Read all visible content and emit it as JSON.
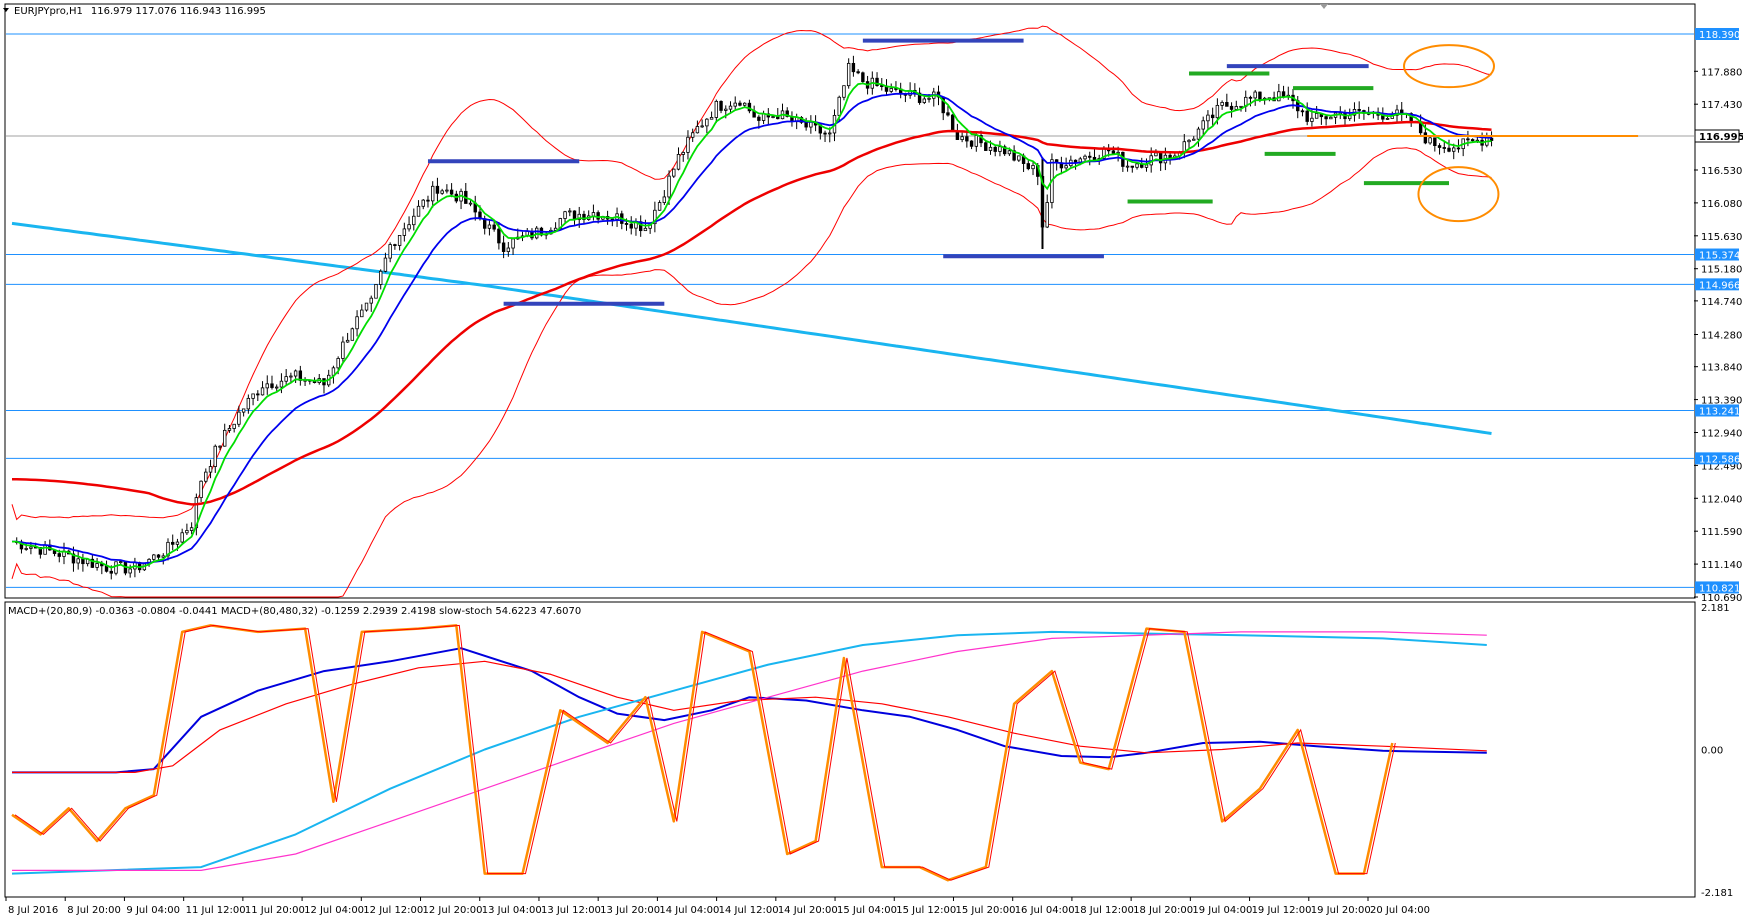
{
  "main_header": {
    "symbol": "EURJPYpro,H1",
    "ohlc": "116.979 117.076 116.943 116.995"
  },
  "sub_header": "MACD+(20,80,9) -0.0363 -0.0804 -0.0441  MACD+(80,480,32) -0.1259 2.2939 2.4198  slow-stoch 54.6223 47.6070",
  "colors": {
    "bull": "#ffffff",
    "bear": "#000000",
    "ema_green": "#00dd00",
    "ema_blue": "#0000ee",
    "ema_red": "#ee0000",
    "bands": "#ff0000",
    "ma_long": "#19b5f0",
    "level_line": "#1e90ff",
    "price_line": "#ff8c00",
    "support_resistance": "#3344bb",
    "swing_marks": "#22aa22",
    "circle": "#ff8c00",
    "macd_main": "#0000dd",
    "macd_signal": "#ff0000",
    "macd_long": "#19b5f0",
    "macd_long_signal": "#ff33cc",
    "stoch": "#ff8c00"
  },
  "chart_data": [
    {
      "type": "candlestick",
      "ylim": [
        110.69,
        118.39
      ],
      "y_ticks": [
        "117.880",
        "117.430",
        "116.530",
        "116.080",
        "115.630",
        "115.180",
        "114.740",
        "114.280",
        "113.840",
        "113.390",
        "112.940",
        "112.490",
        "112.040",
        "111.590",
        "111.140",
        "110.690"
      ],
      "levels": [
        {
          "value": 118.39,
          "label": "118.390"
        },
        {
          "value": 115.374,
          "label": "115.374"
        },
        {
          "value": 114.966,
          "label": "114.966"
        },
        {
          "value": 113.241,
          "label": "113.241"
        },
        {
          "value": 112.586,
          "label": "112.586"
        },
        {
          "value": 110.821,
          "label": "110.821"
        }
      ],
      "current_price": {
        "value": 116.995,
        "label": "116.995"
      },
      "x_labels": [
        "8 Jul 2016",
        "8 Jul 20:00",
        "9 Jul 04:00",
        "11 Jul 12:00",
        "11 Jul 20:00",
        "12 Jul 04:00",
        "12 Jul 12:00",
        "12 Jul 20:00",
        "13 Jul 04:00",
        "13 Jul 12:00",
        "13 Jul 20:00",
        "14 Jul 04:00",
        "14 Jul 12:00",
        "14 Jul 20:00",
        "15 Jul 04:00",
        "15 Jul 12:00",
        "15 Jul 20:00",
        "16 Jul 04:00",
        "18 Jul 12:00",
        "18 Jul 20:00",
        "19 Jul 04:00",
        "19 Jul 12:00",
        "19 Jul 20:00",
        "20 Jul 04:00"
      ],
      "bars": 228,
      "close_path": [
        [
          0,
          111.45
        ],
        [
          12,
          111.25
        ],
        [
          20,
          111.1
        ],
        [
          26,
          111.08
        ],
        [
          33,
          111.35
        ],
        [
          38,
          111.7
        ],
        [
          40,
          112.3
        ],
        [
          44,
          112.8
        ],
        [
          48,
          113.2
        ],
        [
          53,
          113.6
        ],
        [
          60,
          113.7
        ],
        [
          66,
          113.6
        ],
        [
          72,
          114.4
        ],
        [
          76,
          114.7
        ],
        [
          80,
          115.5
        ],
        [
          86,
          116.0
        ],
        [
          90,
          116.3
        ],
        [
          95,
          116.15
        ],
        [
          100,
          115.8
        ],
        [
          104,
          115.5
        ],
        [
          108,
          115.6
        ],
        [
          112,
          115.7
        ],
        [
          117,
          115.9
        ],
        [
          123,
          115.95
        ],
        [
          130,
          115.85
        ],
        [
          134,
          115.75
        ],
        [
          137,
          116.1
        ],
        [
          141,
          116.7
        ],
        [
          145,
          117.1
        ],
        [
          149,
          117.4
        ],
        [
          154,
          117.5
        ],
        [
          158,
          117.2
        ],
        [
          162,
          117.3
        ],
        [
          165,
          117.2
        ],
        [
          169,
          117.1
        ],
        [
          173,
          117.0
        ],
        [
          177,
          117.9
        ],
        [
          180,
          117.75
        ],
        [
          186,
          117.6
        ],
        [
          190,
          117.55
        ],
        [
          196,
          117.5
        ],
        [
          200,
          117.0
        ],
        [
          205,
          116.9
        ],
        [
          210,
          116.8
        ],
        [
          214,
          116.6
        ],
        [
          217,
          116.5
        ],
        [
          218,
          115.6
        ],
        [
          220,
          116.6
        ],
        [
          226,
          116.7
        ],
        [
          232,
          116.8
        ],
        [
          236,
          116.6
        ],
        [
          242,
          116.7
        ],
        [
          246,
          116.75
        ],
        [
          250,
          117.0
        ],
        [
          256,
          117.4
        ],
        [
          262,
          117.5
        ],
        [
          266,
          117.55
        ],
        [
          270,
          117.5
        ],
        [
          275,
          117.2
        ],
        [
          280,
          117.3
        ],
        [
          286,
          117.3
        ],
        [
          292,
          117.3
        ],
        [
          296,
          117.2
        ],
        [
          300,
          116.9
        ],
        [
          306,
          116.85
        ],
        [
          311,
          116.95
        ],
        [
          313,
          116.995
        ]
      ],
      "indicators": {
        "ema_fast": "green line",
        "ema_mid": "blue line",
        "ema_slow": "red line",
        "bands": "thin red envelope",
        "ma_long": "light-blue line"
      }
    },
    {
      "type": "line",
      "ylim": [
        -2.181,
        2.181
      ],
      "y_ticks": [
        "2.181",
        "0.00",
        "-2.181"
      ],
      "series": [
        {
          "values": [
            [
              0,
              -0.35
            ],
            [
              22,
              -0.35
            ],
            [
              30,
              -0.3
            ],
            [
              40,
              0.5
            ],
            [
              52,
              0.9
            ],
            [
              66,
              1.2
            ],
            [
              80,
              1.35
            ],
            [
              95,
              1.55
            ],
            [
              110,
              1.2
            ],
            [
              120,
              0.8
            ],
            [
              128,
              0.55
            ],
            [
              138,
              0.45
            ],
            [
              148,
              0.6
            ],
            [
              156,
              0.8
            ],
            [
              168,
              0.75
            ],
            [
              180,
              0.6
            ],
            [
              190,
              0.5
            ],
            [
              200,
              0.3
            ],
            [
              210,
              0.05
            ],
            [
              222,
              -0.1
            ],
            [
              232,
              -0.12
            ],
            [
              240,
              -0.05
            ],
            [
              252,
              0.1
            ],
            [
              264,
              0.12
            ],
            [
              276,
              0.05
            ],
            [
              290,
              -0.02
            ],
            [
              312,
              -0.05
            ]
          ]
        },
        {
          "values": [
            [
              0,
              -0.35
            ],
            [
              26,
              -0.35
            ],
            [
              34,
              -0.25
            ],
            [
              44,
              0.3
            ],
            [
              58,
              0.7
            ],
            [
              72,
              1.0
            ],
            [
              86,
              1.25
            ],
            [
              100,
              1.35
            ],
            [
              114,
              1.15
            ],
            [
              128,
              0.8
            ],
            [
              140,
              0.6
            ],
            [
              154,
              0.75
            ],
            [
              170,
              0.8
            ],
            [
              184,
              0.7
            ],
            [
              198,
              0.5
            ],
            [
              212,
              0.25
            ],
            [
              226,
              0.05
            ],
            [
              240,
              -0.05
            ],
            [
              256,
              0.0
            ],
            [
              272,
              0.1
            ],
            [
              290,
              0.05
            ],
            [
              312,
              -0.02
            ]
          ]
        },
        {
          "values": [
            [
              0,
              -1.9
            ],
            [
              40,
              -1.8
            ],
            [
              60,
              -1.3
            ],
            [
              80,
              -0.6
            ],
            [
              100,
              0.0
            ],
            [
              120,
              0.5
            ],
            [
              140,
              0.9
            ],
            [
              160,
              1.3
            ],
            [
              180,
              1.6
            ],
            [
              200,
              1.75
            ],
            [
              220,
              1.8
            ],
            [
              260,
              1.75
            ],
            [
              290,
              1.7
            ],
            [
              312,
              1.6
            ]
          ]
        },
        {
          "values": [
            [
              0,
              -1.85
            ],
            [
              40,
              -1.85
            ],
            [
              60,
              -1.6
            ],
            [
              80,
              -1.1
            ],
            [
              100,
              -0.6
            ],
            [
              120,
              -0.1
            ],
            [
              140,
              0.4
            ],
            [
              160,
              0.8
            ],
            [
              180,
              1.2
            ],
            [
              200,
              1.5
            ],
            [
              220,
              1.7
            ],
            [
              260,
              1.8
            ],
            [
              290,
              1.8
            ],
            [
              312,
              1.75
            ]
          ]
        },
        {
          "values": [
            [
              0,
              -1.0
            ],
            [
              6,
              -1.3
            ],
            [
              12,
              -0.9
            ],
            [
              18,
              -1.4
            ],
            [
              24,
              -0.9
            ],
            [
              30,
              -0.7
            ],
            [
              36,
              1.8
            ],
            [
              42,
              1.9
            ],
            [
              52,
              1.8
            ],
            [
              62,
              1.85
            ],
            [
              68,
              -0.8
            ],
            [
              74,
              1.8
            ],
            [
              86,
              1.85
            ],
            [
              94,
              1.9
            ],
            [
              100,
              -1.9
            ],
            [
              108,
              -1.9
            ],
            [
              116,
              0.6
            ],
            [
              126,
              0.1
            ],
            [
              134,
              0.8
            ],
            [
              140,
              -1.1
            ],
            [
              146,
              1.8
            ],
            [
              156,
              1.5
            ],
            [
              164,
              -1.6
            ],
            [
              170,
              -1.4
            ],
            [
              176,
              1.4
            ],
            [
              184,
              -1.8
            ],
            [
              192,
              -1.8
            ],
            [
              198,
              -2.0
            ],
            [
              206,
              -1.8
            ],
            [
              212,
              0.7
            ],
            [
              220,
              1.2
            ],
            [
              226,
              -0.2
            ],
            [
              232,
              -0.3
            ],
            [
              240,
              1.85
            ],
            [
              248,
              1.8
            ],
            [
              256,
              -1.1
            ],
            [
              264,
              -0.6
            ],
            [
              272,
              0.3
            ],
            [
              280,
              -1.9
            ],
            [
              286,
              -1.9
            ],
            [
              292,
              0.1
            ]
          ]
        }
      ]
    }
  ]
}
